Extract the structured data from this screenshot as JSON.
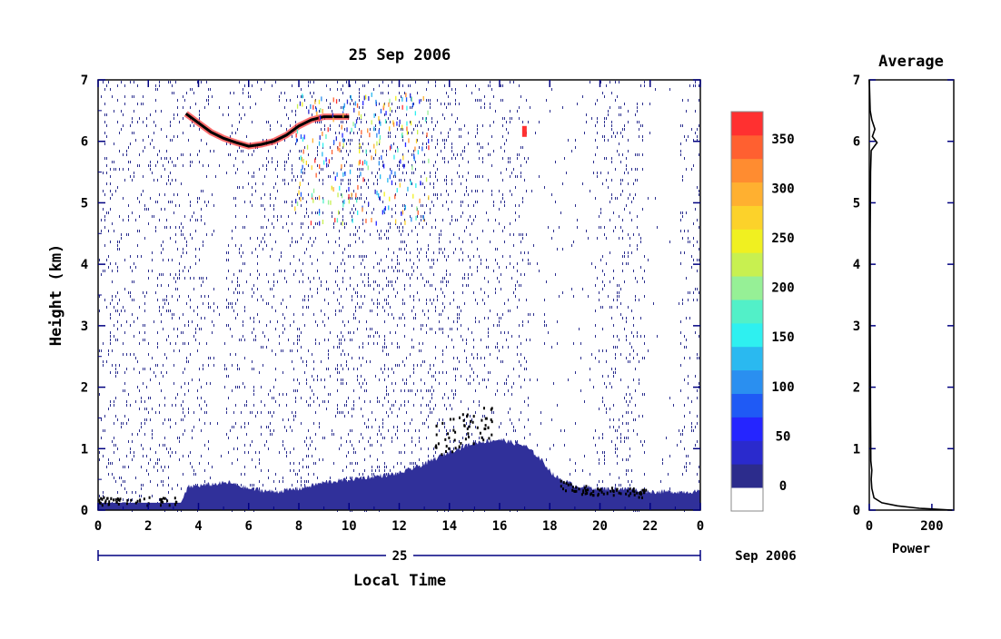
{
  "colors": {
    "axis": "#000080",
    "frame": "#0a0a0a",
    "noise": "#2b2f8f",
    "fill": "#30309a",
    "trace": "#000000"
  },
  "chart_data": [
    {
      "type": "heatmap",
      "title": "25 Sep 2006",
      "xlabel": "Local Time",
      "ylabel": "Height (km)",
      "xlim": [
        0,
        24
      ],
      "ylim": [
        0,
        7
      ],
      "x_ticks": [
        "0",
        "2",
        "4",
        "6",
        "8",
        "10",
        "12",
        "14",
        "16",
        "18",
        "20",
        "22",
        "0"
      ],
      "y_ticks": [
        "0",
        "1",
        "2",
        "3",
        "4",
        "5",
        "6",
        "7"
      ],
      "day_label": "25",
      "month_label": "Sep 2006",
      "colorbar": {
        "labels": [
          "0",
          "50",
          "100",
          "150",
          "200",
          "250",
          "300",
          "350"
        ],
        "colors": [
          "#ffffff",
          "#2c2c8c",
          "#2a2acd",
          "#2525ff",
          "#1f5af5",
          "#2a8ff0",
          "#2ab9f0",
          "#2ef0f0",
          "#52f0c8",
          "#96f096",
          "#c8f050",
          "#f0f020",
          "#fcd22a",
          "#ffb030",
          "#ff8c30",
          "#ff6030",
          "#ff3030"
        ]
      },
      "layers": {
        "surface_layer_top_km": [
          {
            "t": 0,
            "h": 0.12
          },
          {
            "t": 3.3,
            "h": 0.12
          },
          {
            "t": 3.6,
            "h": 0.38
          },
          {
            "t": 5.2,
            "h": 0.45
          },
          {
            "t": 6,
            "h": 0.35
          },
          {
            "t": 7,
            "h": 0.3
          },
          {
            "t": 8,
            "h": 0.35
          },
          {
            "t": 9,
            "h": 0.45
          },
          {
            "t": 10,
            "h": 0.5
          },
          {
            "t": 11,
            "h": 0.55
          },
          {
            "t": 12,
            "h": 0.6
          },
          {
            "t": 13,
            "h": 0.75
          },
          {
            "t": 14,
            "h": 0.95
          },
          {
            "t": 15,
            "h": 1.1
          },
          {
            "t": 16,
            "h": 1.15
          },
          {
            "t": 17,
            "h": 1.05
          },
          {
            "t": 17.6,
            "h": 0.85
          },
          {
            "t": 18.2,
            "h": 0.55
          },
          {
            "t": 19,
            "h": 0.4
          },
          {
            "t": 20,
            "h": 0.35
          },
          {
            "t": 21,
            "h": 0.35
          },
          {
            "t": 22,
            "h": 0.3
          },
          {
            "t": 24,
            "h": 0.3
          }
        ],
        "cloud_layer_km": [
          {
            "t": 3.5,
            "h": 6.45
          },
          {
            "t": 4,
            "h": 6.3
          },
          {
            "t": 4.5,
            "h": 6.15
          },
          {
            "t": 5,
            "h": 6.05
          },
          {
            "t": 5.5,
            "h": 5.98
          },
          {
            "t": 6,
            "h": 5.92
          },
          {
            "t": 6.5,
            "h": 5.95
          },
          {
            "t": 7,
            "h": 6.0
          },
          {
            "t": 7.5,
            "h": 6.1
          },
          {
            "t": 8,
            "h": 6.25
          },
          {
            "t": 8.5,
            "h": 6.35
          },
          {
            "t": 9,
            "h": 6.4
          },
          {
            "t": 9.5,
            "h": 6.4
          },
          {
            "t": 10,
            "h": 6.4
          }
        ]
      }
    },
    {
      "type": "line",
      "title": "Average",
      "xlabel": "Power",
      "ylabel": "",
      "xlim": [
        0,
        270
      ],
      "ylim": [
        0,
        7
      ],
      "x_ticks": [
        "0",
        "200"
      ],
      "y_ticks": [
        "0",
        "1",
        "2",
        "3",
        "4",
        "5",
        "6",
        "7"
      ],
      "series": [
        {
          "points": [
            {
              "power": 265,
              "h": 0.0
            },
            {
              "power": 160,
              "h": 0.03
            },
            {
              "power": 90,
              "h": 0.07
            },
            {
              "power": 40,
              "h": 0.12
            },
            {
              "power": 15,
              "h": 0.2
            },
            {
              "power": 8,
              "h": 0.35
            },
            {
              "power": 6,
              "h": 0.5
            },
            {
              "power": 8,
              "h": 0.65
            },
            {
              "power": 5,
              "h": 0.8
            },
            {
              "power": 4,
              "h": 1.5
            },
            {
              "power": 3,
              "h": 3.0
            },
            {
              "power": 3,
              "h": 4.5
            },
            {
              "power": 4,
              "h": 5.5
            },
            {
              "power": 6,
              "h": 5.85
            },
            {
              "power": 25,
              "h": 5.98
            },
            {
              "power": 10,
              "h": 6.08
            },
            {
              "power": 18,
              "h": 6.2
            },
            {
              "power": 8,
              "h": 6.35
            },
            {
              "power": 3,
              "h": 6.5
            },
            {
              "power": 0,
              "h": 7.0
            }
          ]
        }
      ]
    }
  ]
}
